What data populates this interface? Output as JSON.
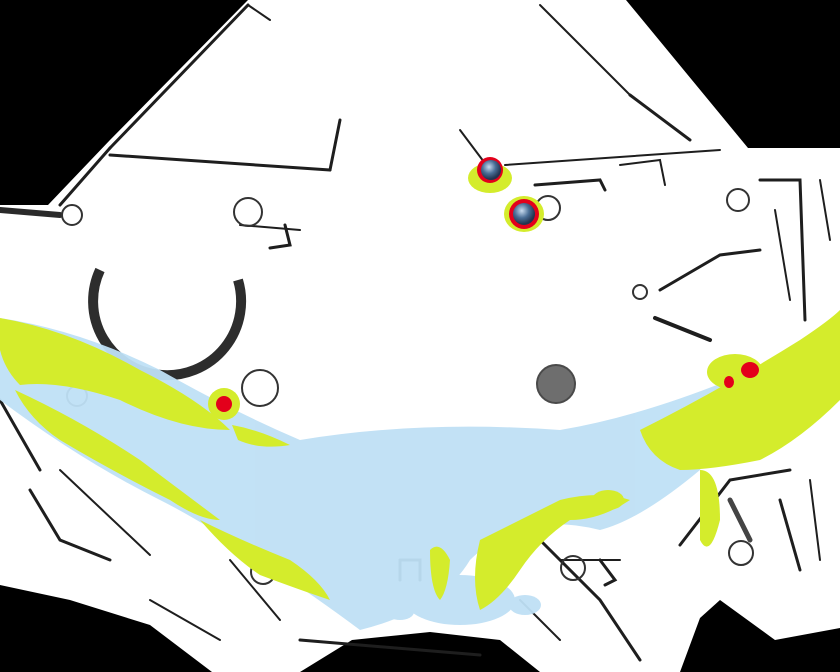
{
  "map": {
    "style": "occupancy-grid-heatmap",
    "colors": {
      "background": "#000000",
      "free_space": "#ffffff",
      "walls": "#1a1a1a",
      "obstacle_gray": "#6e6e6e",
      "heat_low": "#bfe0f5",
      "heat_mid": "#d4ec2c",
      "heat_high": "#e3001b",
      "marker_fill": "#4a6e96"
    },
    "markers": [
      {
        "name": "marker-1",
        "type": "detected-object"
      },
      {
        "name": "marker-2",
        "type": "detected-object"
      },
      {
        "name": "marker-3",
        "type": "static-obstacle"
      }
    ]
  }
}
